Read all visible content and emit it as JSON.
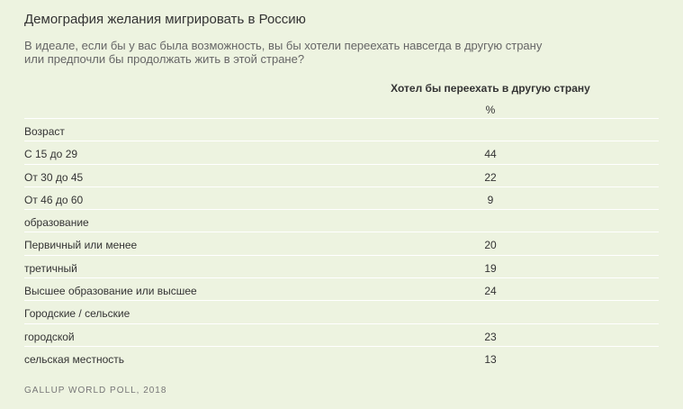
{
  "title": "Демография желания мигрировать в Россию",
  "question": "В идеале, если бы у вас была возможность, вы бы хотели переехать навсегда в другую страну или предпочли бы продолжать жить в этой стране?",
  "column_header": "Хотел бы переехать в другую страну",
  "column_unit": "%",
  "source": "GALLUP WORLD POLL, 2018",
  "chart_data": {
    "type": "table",
    "title": "Демография желания мигрировать в Россию",
    "columns": [
      "Хотел бы переехать в другую страну"
    ],
    "unit": "%",
    "rows": [
      {
        "label": "Возраст",
        "value": "",
        "group": true
      },
      {
        "label": "С 15 до 29",
        "value": "44"
      },
      {
        "label": "От 30 до 45",
        "value": "22"
      },
      {
        "label": "От 46 до 60",
        "value": "9"
      },
      {
        "label": "образование",
        "value": "",
        "group": true
      },
      {
        "label": "Первичный или менее",
        "value": "20"
      },
      {
        "label": "третичный",
        "value": "19"
      },
      {
        "label": "Высшее образование или высшее",
        "value": "24"
      },
      {
        "label": "Городские / сельские",
        "value": "",
        "group": true
      },
      {
        "label": "городской",
        "value": "23"
      },
      {
        "label": "сельская местность",
        "value": "13"
      }
    ]
  }
}
